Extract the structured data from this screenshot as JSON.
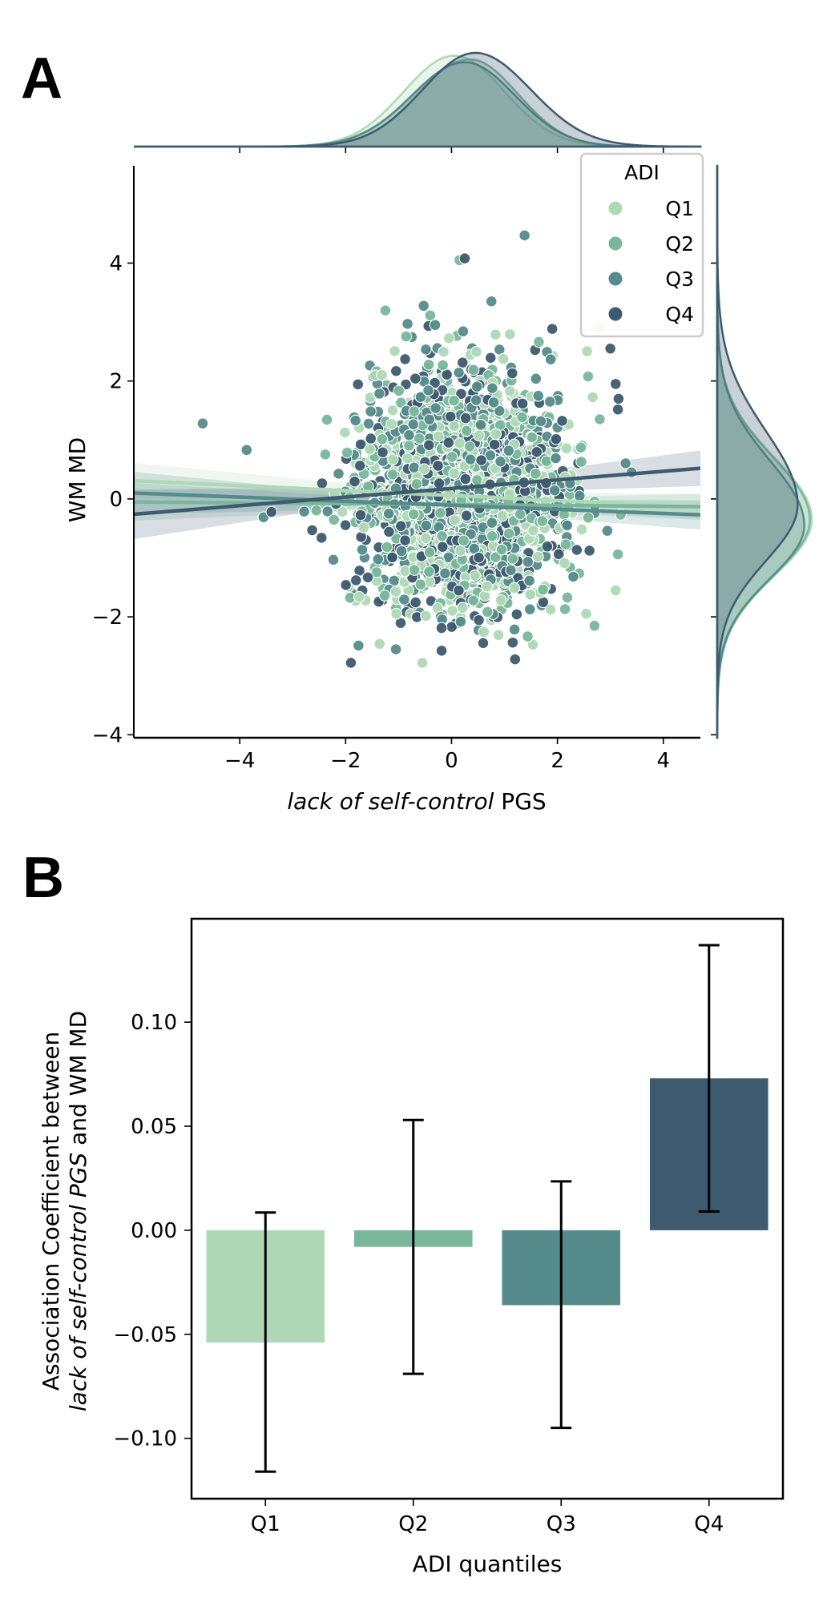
{
  "figure": {
    "panel_a_label": "A",
    "panel_b_label": "B"
  },
  "chart_data": [
    {
      "type": "scatter",
      "panel": "A",
      "title": "",
      "xlabel_italic": "lack of self-control",
      "xlabel_rest": " PGS",
      "ylabel": "WM MD",
      "xlim": [
        -6.0,
        4.7
      ],
      "ylim": [
        -4.05,
        5.65
      ],
      "xticks": [
        -4,
        -2,
        0,
        2,
        4
      ],
      "xtick_labels": [
        "−4",
        "−2",
        "0",
        "2",
        "4"
      ],
      "yticks": [
        -4,
        -2,
        0,
        2,
        4
      ],
      "ytick_labels": [
        "−4",
        "−2",
        "0",
        "2",
        "4"
      ],
      "grid": false,
      "legend": {
        "title": "ADI",
        "placement": "top-right",
        "entries": [
          "Q1",
          "Q2",
          "Q3",
          "Q4"
        ]
      },
      "series": [
        {
          "name": "Q1",
          "color": "#afd9b6",
          "line": {
            "x": [
              -6.0,
              4.7
            ],
            "y": [
              0.31,
              -0.14
            ]
          },
          "ci_halfwidth": [
            0.3,
            0.22
          ]
        },
        {
          "name": "Q2",
          "color": "#79b79b",
          "line": {
            "x": [
              -6.0,
              4.7
            ],
            "y": [
              -0.05,
              -0.13
            ]
          },
          "ci_halfwidth": [
            0.32,
            0.22
          ]
        },
        {
          "name": "Q3",
          "color": "#558b8a",
          "line": {
            "x": [
              -6.0,
              4.7
            ],
            "y": [
              0.1,
              -0.27
            ]
          },
          "ci_halfwidth": [
            0.36,
            0.25
          ]
        },
        {
          "name": "Q4",
          "color": "#3e5a6f",
          "line": {
            "x": [
              -6.0,
              4.7
            ],
            "y": [
              -0.26,
              0.52
            ]
          },
          "ci_halfwidth": [
            0.42,
            0.3
          ]
        }
      ],
      "point_cloud": {
        "description": "dense cloud of individual subjects, approx. centered at (0.2, 0.1), x sd ~0.95, y sd ~1.0",
        "center": [
          0.2,
          0.1
        ],
        "sd": [
          0.95,
          1.0
        ],
        "points_per_series": 550
      },
      "outliers": [
        {
          "series": "Q3",
          "x": -4.7,
          "y": 1.28
        },
        {
          "series": "Q3",
          "x": -3.87,
          "y": 0.83
        },
        {
          "series": "Q3",
          "x": -3.55,
          "y": -0.31
        },
        {
          "series": "Q4",
          "x": -3.4,
          "y": -0.22
        },
        {
          "series": "Q3",
          "x": 1.38,
          "y": 4.47
        },
        {
          "series": "Q2",
          "x": 0.15,
          "y": 4.05
        },
        {
          "series": "Q4",
          "x": 0.25,
          "y": 4.08
        },
        {
          "series": "Q1",
          "x": 2.8,
          "y": 2.9
        },
        {
          "series": "Q4",
          "x": 3.1,
          "y": 1.95
        },
        {
          "series": "Q4",
          "x": 3.0,
          "y": 2.55
        },
        {
          "series": "Q4",
          "x": -1.9,
          "y": -2.78
        },
        {
          "series": "Q1",
          "x": -0.55,
          "y": -2.78
        },
        {
          "series": "Q4",
          "x": 1.2,
          "y": -2.72
        },
        {
          "series": "Q3",
          "x": -1.05,
          "y": -2.55
        },
        {
          "series": "Q2",
          "x": 2.7,
          "y": -2.15
        },
        {
          "series": "Q1",
          "x": 3.1,
          "y": -1.55
        },
        {
          "series": "Q3",
          "x": 3.4,
          "y": 0.45
        },
        {
          "series": "Q2",
          "x": 2.8,
          "y": 1.35
        }
      ],
      "marginal_top": {
        "type": "kde",
        "peak_x": 0.4,
        "range": [
          -2.6,
          3.6
        ]
      },
      "marginal_right": {
        "type": "kde",
        "peak_y": -0.3,
        "range": [
          -3.0,
          3.8
        ]
      }
    },
    {
      "type": "bar",
      "panel": "B",
      "title": "",
      "categories": [
        "Q1",
        "Q2",
        "Q3",
        "Q4"
      ],
      "values": [
        -0.054,
        -0.008,
        -0.036,
        0.073
      ],
      "error_low": [
        -0.116,
        -0.069,
        -0.095,
        0.009
      ],
      "error_high": [
        0.0085,
        0.053,
        0.0235,
        0.137
      ],
      "colors": [
        "#afd9b6",
        "#79b79b",
        "#558b8a",
        "#3e5a6f"
      ],
      "xlabel": "ADI quantiles",
      "ylabel_line1": "Association Coefficient between",
      "ylabel_line2_italic": "lack of self-control PGS",
      "ylabel_line2_rest": " and WM MD",
      "ylim": [
        -0.129,
        0.1497
      ],
      "yticks": [
        -0.1,
        -0.05,
        0.0,
        0.05,
        0.1
      ],
      "ytick_labels": [
        "−0.10",
        "−0.05",
        "0.00",
        "0.05",
        "0.10"
      ],
      "grid": false
    }
  ]
}
